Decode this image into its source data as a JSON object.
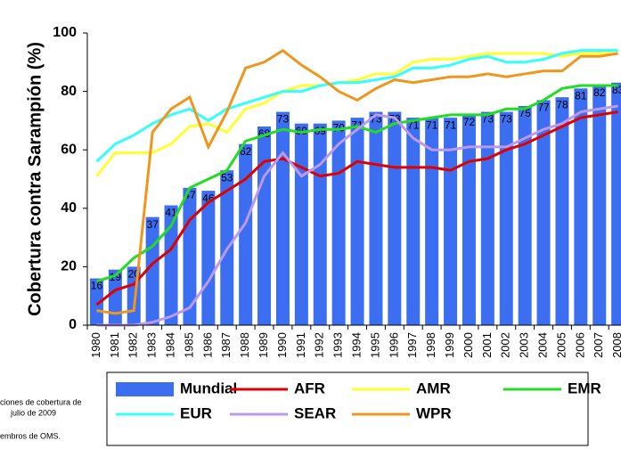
{
  "chart_data": {
    "type": "bar",
    "y_label": "Cobertura contra Sarampión (%)",
    "categories": [
      "1980",
      "1981",
      "1982",
      "1983",
      "1984",
      "1985",
      "1986",
      "1987",
      "1988",
      "1989",
      "1990",
      "1991",
      "1992",
      "1993",
      "1994",
      "1995",
      "1996",
      "1997",
      "1998",
      "1999",
      "2000",
      "2001",
      "2002",
      "2003",
      "2004",
      "2005",
      "2006",
      "2007",
      "2008"
    ],
    "series": [
      {
        "name": "Mundial",
        "type": "bar",
        "color": "#3b6ef0",
        "values": [
          16,
          19,
          20,
          37,
          41,
          47,
          46,
          53,
          62,
          68,
          73,
          69,
          69,
          70,
          71,
          73,
          73,
          71,
          71,
          71,
          72,
          73,
          73,
          75,
          77,
          78,
          81,
          82,
          83
        ]
      },
      {
        "name": "AFR",
        "type": "line",
        "color": "#e00000",
        "values": [
          7,
          12,
          14,
          21,
          26,
          36,
          42,
          46,
          50,
          56,
          57,
          54,
          51,
          52,
          56,
          55,
          54,
          54,
          54,
          53,
          56,
          57,
          60,
          62,
          65,
          68,
          71,
          72,
          73
        ]
      },
      {
        "name": "AMR",
        "type": "line",
        "color": "#ffff33",
        "values": [
          51,
          59,
          59,
          59,
          62,
          68,
          69,
          66,
          74,
          76,
          80,
          82,
          82,
          83,
          84,
          86,
          86,
          90,
          91,
          91,
          92,
          93,
          93,
          93,
          93,
          92,
          93,
          93,
          93
        ]
      },
      {
        "name": "EMR",
        "type": "line",
        "color": "#22dd22",
        "values": [
          15,
          17,
          23,
          27,
          34,
          47,
          50,
          53,
          63,
          65,
          67,
          66,
          67,
          67,
          68,
          66,
          69,
          70,
          71,
          72,
          72,
          72,
          74,
          74,
          77,
          81,
          82,
          82,
          82
        ]
      },
      {
        "name": "EUR",
        "type": "line",
        "color": "#33ffff",
        "values": [
          56,
          62,
          65,
          69,
          72,
          74,
          70,
          74,
          76,
          78,
          80,
          80,
          82,
          83,
          83,
          84,
          85,
          88,
          88,
          89,
          91,
          92,
          90,
          90,
          91,
          93,
          94,
          94,
          94
        ]
      },
      {
        "name": "SEAR",
        "type": "line",
        "color": "#bb99ee",
        "values": [
          0,
          0,
          0,
          1,
          3,
          6,
          15,
          26,
          35,
          51,
          59,
          51,
          55,
          62,
          67,
          72,
          71,
          64,
          60,
          60,
          61,
          61,
          61,
          64,
          67,
          69,
          73,
          74,
          75
        ]
      },
      {
        "name": "WPR",
        "type": "line",
        "color": "#f0961e",
        "values": [
          5,
          4,
          5,
          66,
          74,
          78,
          61,
          73,
          88,
          90,
          94,
          89,
          85,
          80,
          77,
          81,
          84,
          83,
          84,
          85,
          85,
          86,
          85,
          86,
          87,
          87,
          92,
          92,
          93
        ]
      }
    ],
    "ylim": [
      0,
      100
    ],
    "yticks": [
      0,
      20,
      40,
      60,
      80,
      100
    ],
    "footnotes": [
      "ciones de cobertura de",
      "julio de 2009",
      "embros de OMS."
    ]
  }
}
